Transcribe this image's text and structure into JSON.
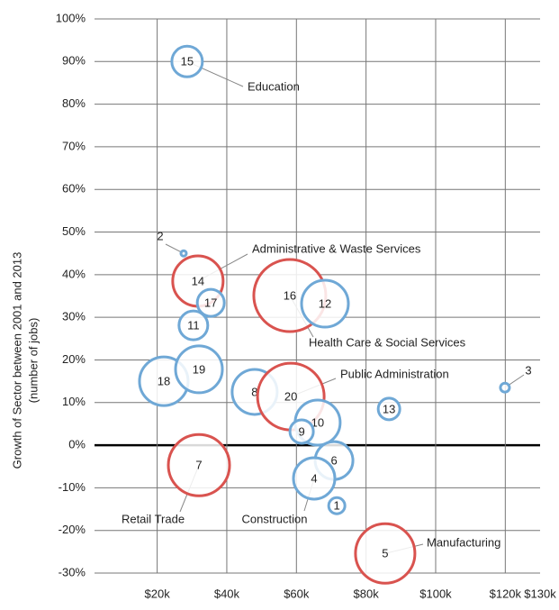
{
  "chart_data": {
    "type": "bubble",
    "y_axis_label": [
      "Growth of Sector between 2001 and 2013",
      "(number of jobs)"
    ],
    "xlim": [
      2000,
      130000
    ],
    "xticks": [
      {
        "value": 20000,
        "label": "$20k"
      },
      {
        "value": 40000,
        "label": "$40k"
      },
      {
        "value": 60000,
        "label": "$60k"
      },
      {
        "value": 80000,
        "label": "$80k"
      },
      {
        "value": 100000,
        "label": "$100k"
      },
      {
        "value": 120000,
        "label": "$120k"
      },
      {
        "value": 130000,
        "label": "$130k"
      }
    ],
    "ylim": [
      -30,
      100
    ],
    "yticks": [
      {
        "value": -30,
        "label": "-30%"
      },
      {
        "value": -20,
        "label": "-20%"
      },
      {
        "value": -10,
        "label": "-10%"
      },
      {
        "value": 0,
        "label": "0%"
      },
      {
        "value": 10,
        "label": "10%"
      },
      {
        "value": 20,
        "label": "20%"
      },
      {
        "value": 30,
        "label": "30%"
      },
      {
        "value": 40,
        "label": "40%"
      },
      {
        "value": 50,
        "label": "50%"
      },
      {
        "value": 60,
        "label": "60%"
      },
      {
        "value": 70,
        "label": "70%"
      },
      {
        "value": 80,
        "label": "80%"
      },
      {
        "value": 90,
        "label": "90%"
      },
      {
        "value": 100,
        "label": "100%"
      }
    ],
    "grid": true,
    "points": [
      {
        "label": "15",
        "x": 28600,
        "y": 90,
        "size": 17,
        "color": "#6fa8d6"
      },
      {
        "label": "2",
        "x": 27600,
        "y": 45,
        "size": 3,
        "color": "#6fa8d6"
      },
      {
        "label": "14",
        "x": 31700,
        "y": 38.5,
        "size": 28,
        "color": "#d9534f"
      },
      {
        "label": "17",
        "x": 35400,
        "y": 33.4,
        "size": 15,
        "color": "#6fa8d6"
      },
      {
        "label": "11",
        "x": 30400,
        "y": 28.1,
        "size": 16,
        "color": "#6fa8d6"
      },
      {
        "label": "16",
        "x": 58100,
        "y": 35.1,
        "size": 40,
        "color": "#d9534f"
      },
      {
        "label": "12",
        "x": 68200,
        "y": 33.2,
        "size": 26,
        "color": "#6fa8d6"
      },
      {
        "label": "18",
        "x": 21900,
        "y": 15,
        "size": 27,
        "color": "#6fa8d6"
      },
      {
        "label": "19",
        "x": 32000,
        "y": 17.8,
        "size": 26,
        "color": "#6fa8d6"
      },
      {
        "label": "8",
        "x": 48000,
        "y": 12.5,
        "size": 25,
        "color": "#6fa8d6"
      },
      {
        "label": "20",
        "x": 58400,
        "y": 11.4,
        "size": 37,
        "color": "#d9534f"
      },
      {
        "label": "10",
        "x": 66100,
        "y": 5.3,
        "size": 25,
        "color": "#6fa8d6"
      },
      {
        "label": "9",
        "x": 61500,
        "y": 3.2,
        "size": 13,
        "color": "#6fa8d6"
      },
      {
        "label": "13",
        "x": 86600,
        "y": 8.5,
        "size": 12,
        "color": "#6fa8d6"
      },
      {
        "label": "3",
        "x": 119900,
        "y": 13.5,
        "size": 5,
        "color": "#6fa8d6"
      },
      {
        "label": "7",
        "x": 32000,
        "y": -4.7,
        "size": 34,
        "color": "#d9534f"
      },
      {
        "label": "6",
        "x": 70800,
        "y": -3.6,
        "size": 21,
        "color": "#6fa8d6"
      },
      {
        "label": "4",
        "x": 65100,
        "y": -7.8,
        "size": 23,
        "color": "#6fa8d6"
      },
      {
        "label": "1",
        "x": 71600,
        "y": -14.2,
        "size": 9,
        "color": "#6fa8d6"
      },
      {
        "label": "5",
        "x": 85500,
        "y": -25.4,
        "size": 33,
        "color": "#d9534f"
      }
    ],
    "annotations": [
      "Education",
      "Administrative & Waste Services",
      "Health Care & Social Services",
      "Public Administration",
      "Manufacturing",
      "Retail Trade",
      "Construction"
    ]
  }
}
